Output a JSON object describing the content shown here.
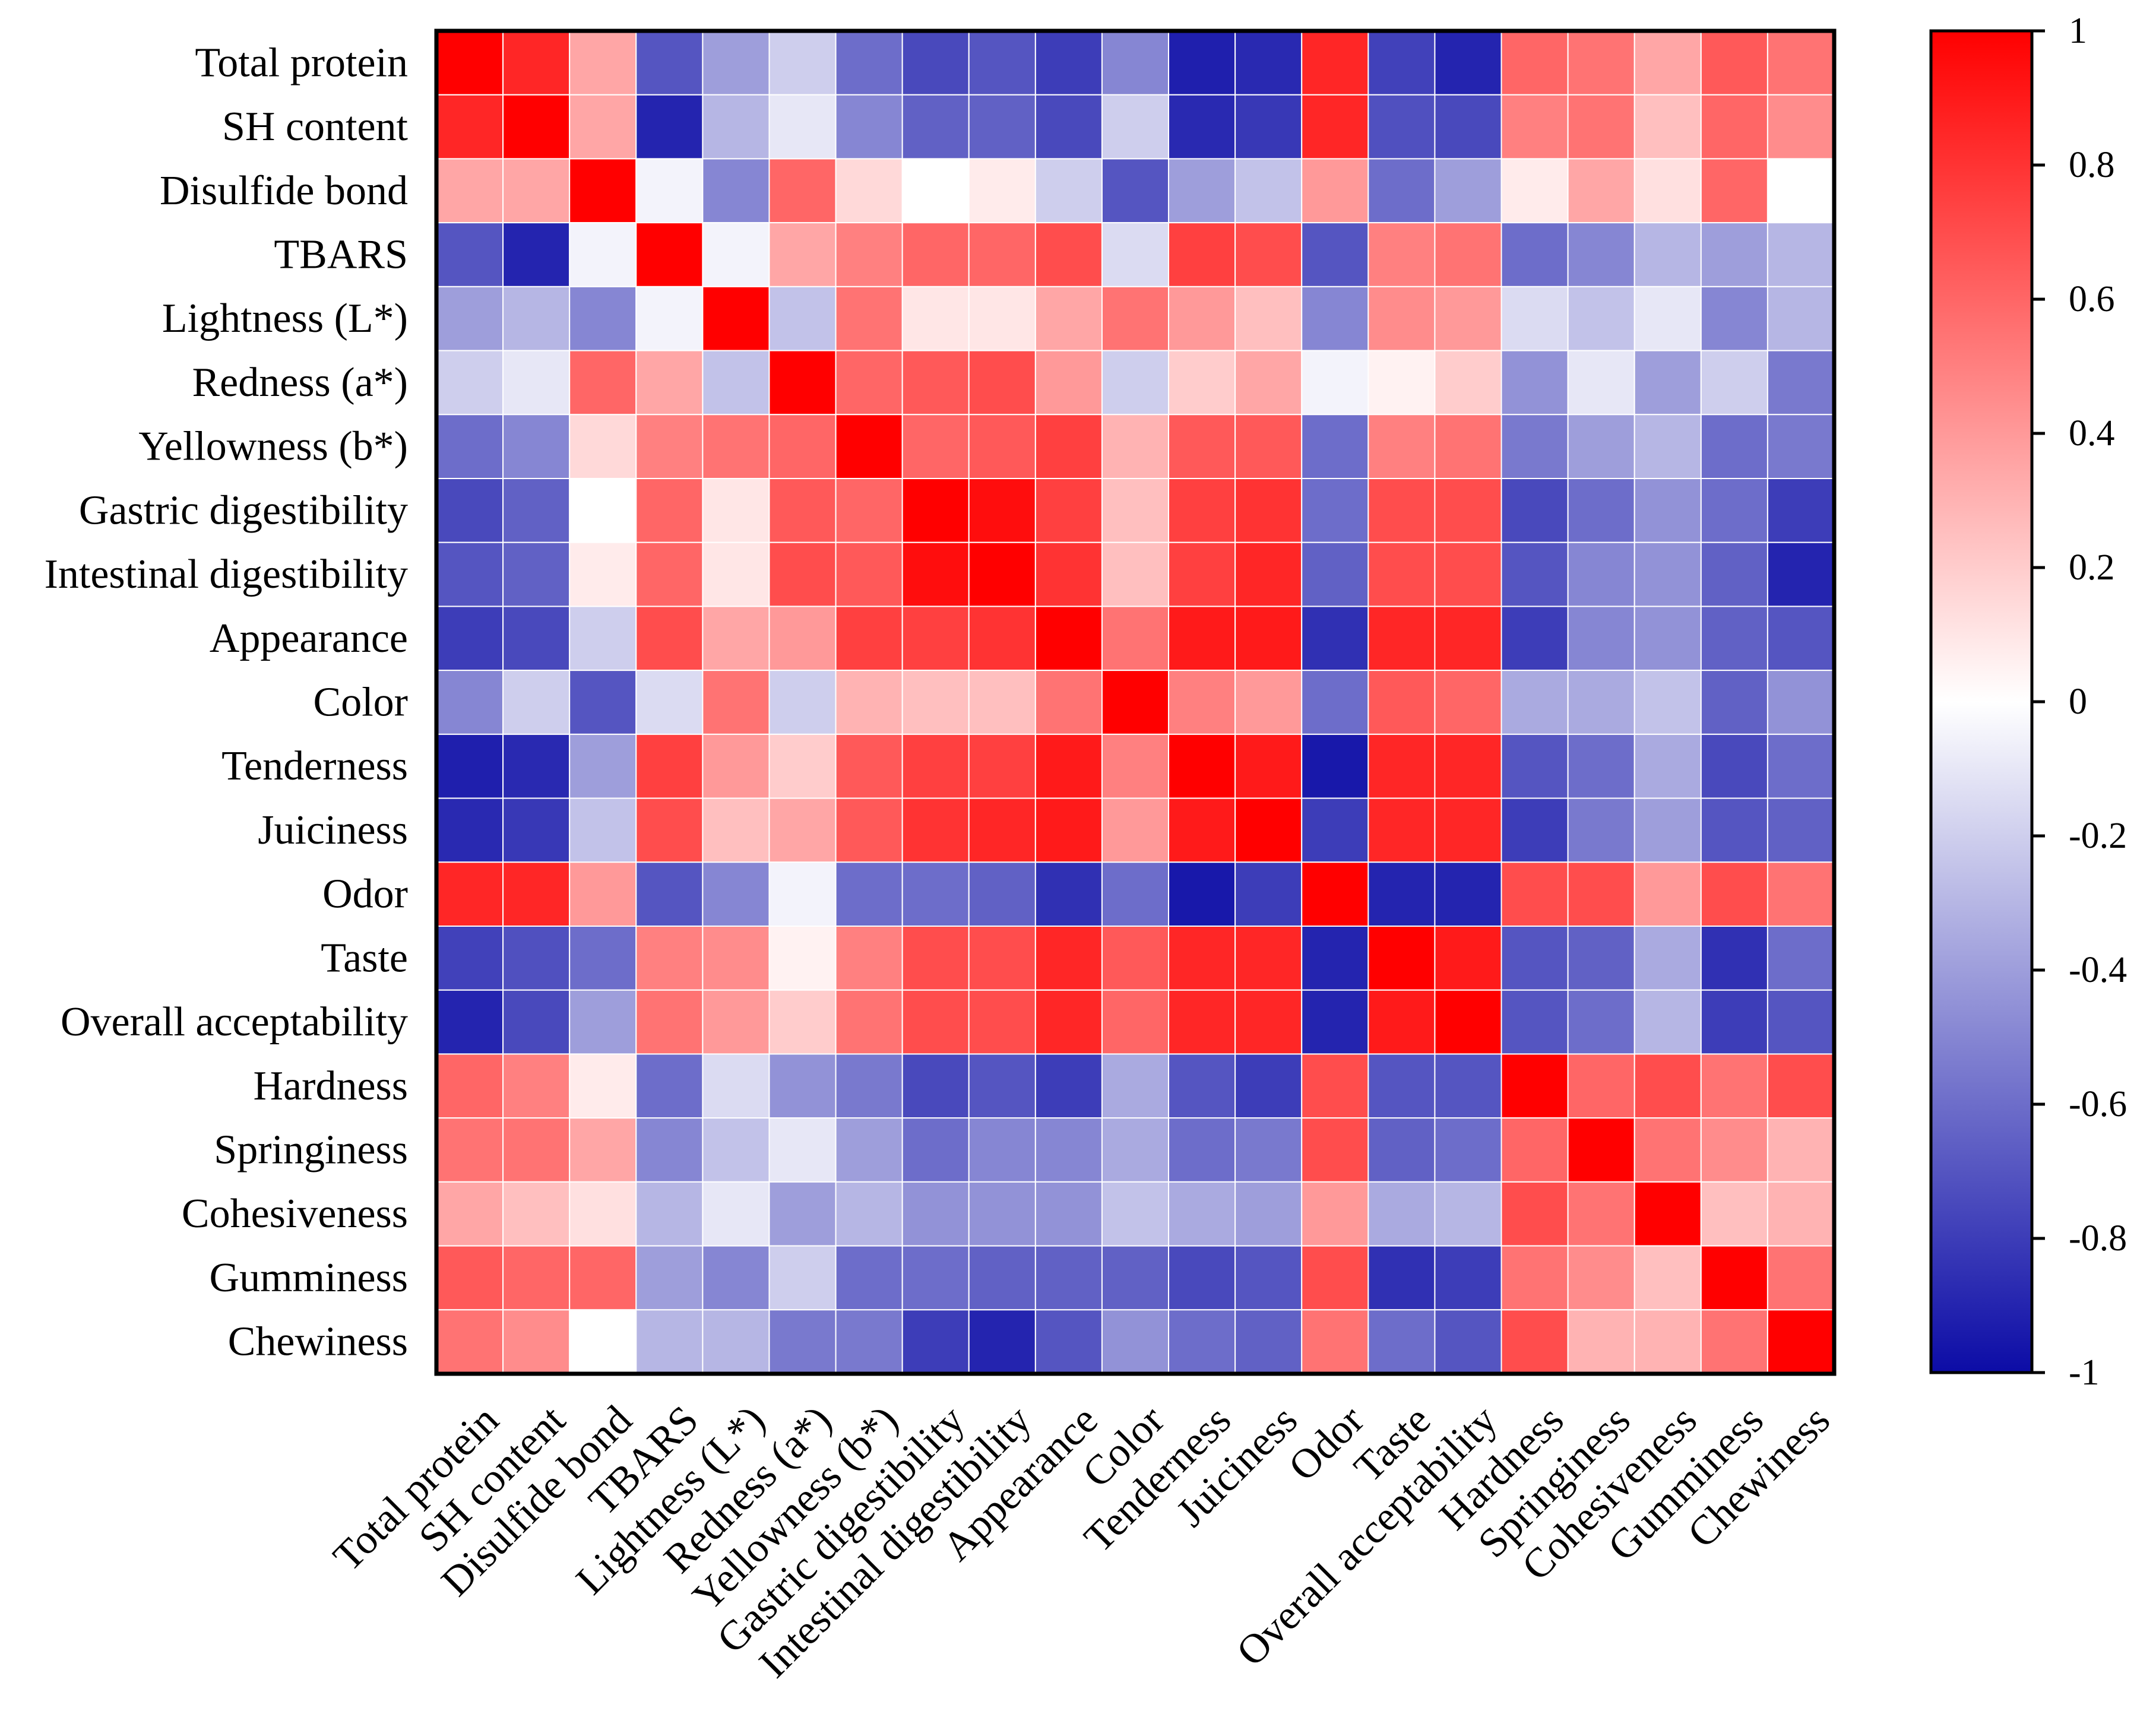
{
  "chart_data": {
    "type": "heatmap",
    "title": "",
    "xlabel": "",
    "ylabel": "",
    "variables": [
      "Total protein",
      "SH content",
      "Disulfide bond",
      "TBARS",
      "Lightness (L*)",
      "Redness (a*)",
      "Yellowness (b*)",
      "Gastric digestibility",
      "Intestinal digestibility",
      "Appearance",
      "Color",
      "Tenderness",
      "Juiciness",
      "Odor",
      "Taste",
      "Overall acceptability",
      "Hardness",
      "Springiness",
      "Cohesiveness",
      "Gumminess",
      "Chewiness"
    ],
    "matrix": [
      [
        1.0,
        0.85,
        0.35,
        -0.7,
        -0.4,
        -0.2,
        -0.6,
        -0.75,
        -0.7,
        -0.8,
        -0.5,
        -0.92,
        -0.88,
        0.85,
        -0.78,
        -0.9,
        0.6,
        0.55,
        0.35,
        0.65,
        0.55
      ],
      [
        0.85,
        1.0,
        0.35,
        -0.9,
        -0.3,
        -0.1,
        -0.5,
        -0.65,
        -0.65,
        -0.75,
        -0.2,
        -0.88,
        -0.82,
        0.85,
        -0.72,
        -0.75,
        0.5,
        0.55,
        0.25,
        0.6,
        0.45
      ],
      [
        0.35,
        0.35,
        1.0,
        -0.05,
        -0.5,
        0.6,
        0.15,
        0.0,
        0.08,
        -0.2,
        -0.7,
        -0.4,
        -0.25,
        0.4,
        -0.6,
        -0.4,
        0.08,
        0.35,
        0.12,
        0.6,
        0.0
      ],
      [
        -0.7,
        -0.9,
        -0.05,
        1.0,
        -0.05,
        0.35,
        0.5,
        0.6,
        0.6,
        0.7,
        -0.15,
        0.75,
        0.7,
        -0.7,
        0.5,
        0.55,
        -0.6,
        -0.5,
        -0.3,
        -0.4,
        -0.3
      ],
      [
        -0.4,
        -0.3,
        -0.5,
        -0.05,
        1.0,
        -0.25,
        0.55,
        0.1,
        0.1,
        0.35,
        0.55,
        0.4,
        0.25,
        -0.5,
        0.45,
        0.4,
        -0.15,
        -0.25,
        -0.1,
        -0.5,
        -0.3
      ],
      [
        -0.2,
        -0.1,
        0.6,
        0.35,
        -0.25,
        1.0,
        0.6,
        0.65,
        0.7,
        0.4,
        -0.2,
        0.2,
        0.35,
        -0.05,
        0.05,
        0.2,
        -0.45,
        -0.1,
        -0.4,
        -0.2,
        -0.55
      ],
      [
        -0.6,
        -0.5,
        0.15,
        0.5,
        0.55,
        0.6,
        1.0,
        0.6,
        0.65,
        0.75,
        0.3,
        0.65,
        0.65,
        -0.6,
        0.5,
        0.55,
        -0.55,
        -0.4,
        -0.3,
        -0.6,
        -0.55
      ],
      [
        -0.75,
        -0.65,
        0.0,
        0.6,
        0.1,
        0.65,
        0.6,
        1.0,
        0.95,
        0.75,
        0.25,
        0.75,
        0.8,
        -0.6,
        0.7,
        0.7,
        -0.75,
        -0.6,
        -0.45,
        -0.6,
        -0.8
      ],
      [
        -0.7,
        -0.65,
        0.08,
        0.6,
        0.1,
        0.7,
        0.65,
        0.95,
        1.0,
        0.8,
        0.25,
        0.75,
        0.85,
        -0.65,
        0.7,
        0.7,
        -0.7,
        -0.5,
        -0.45,
        -0.65,
        -0.9
      ],
      [
        -0.8,
        -0.75,
        -0.2,
        0.7,
        0.35,
        0.4,
        0.75,
        0.75,
        0.8,
        1.0,
        0.55,
        0.9,
        0.9,
        -0.85,
        0.85,
        0.85,
        -0.8,
        -0.5,
        -0.45,
        -0.65,
        -0.7
      ],
      [
        -0.5,
        -0.2,
        -0.7,
        -0.15,
        0.55,
        -0.2,
        0.3,
        0.25,
        0.25,
        0.55,
        1.0,
        0.5,
        0.4,
        -0.6,
        0.65,
        0.6,
        -0.35,
        -0.35,
        -0.25,
        -0.65,
        -0.45
      ],
      [
        -0.92,
        -0.88,
        -0.4,
        0.75,
        0.4,
        0.2,
        0.65,
        0.75,
        0.75,
        0.9,
        0.5,
        1.0,
        0.9,
        -0.95,
        0.85,
        0.85,
        -0.7,
        -0.6,
        -0.35,
        -0.75,
        -0.6
      ],
      [
        -0.88,
        -0.82,
        -0.25,
        0.7,
        0.25,
        0.35,
        0.65,
        0.8,
        0.85,
        0.9,
        0.4,
        0.9,
        1.0,
        -0.8,
        0.85,
        0.85,
        -0.8,
        -0.55,
        -0.4,
        -0.7,
        -0.65
      ],
      [
        0.85,
        0.85,
        0.4,
        -0.7,
        -0.5,
        -0.05,
        -0.6,
        -0.6,
        -0.65,
        -0.85,
        -0.6,
        -0.95,
        -0.8,
        1.0,
        -0.9,
        -0.9,
        0.7,
        0.7,
        0.4,
        0.7,
        0.55
      ],
      [
        -0.78,
        -0.72,
        -0.6,
        0.5,
        0.45,
        0.05,
        0.5,
        0.7,
        0.7,
        0.85,
        0.65,
        0.85,
        0.85,
        -0.9,
        1.0,
        0.9,
        -0.7,
        -0.65,
        -0.35,
        -0.85,
        -0.6
      ],
      [
        -0.9,
        -0.75,
        -0.4,
        0.55,
        0.4,
        0.2,
        0.55,
        0.7,
        0.7,
        0.85,
        0.6,
        0.85,
        0.85,
        -0.9,
        0.9,
        1.0,
        -0.7,
        -0.6,
        -0.3,
        -0.8,
        -0.7
      ],
      [
        0.6,
        0.5,
        0.08,
        -0.6,
        -0.15,
        -0.45,
        -0.55,
        -0.75,
        -0.7,
        -0.8,
        -0.35,
        -0.7,
        -0.8,
        0.7,
        -0.7,
        -0.7,
        1.0,
        0.6,
        0.7,
        0.55,
        0.7
      ],
      [
        0.55,
        0.55,
        0.35,
        -0.5,
        -0.25,
        -0.1,
        -0.4,
        -0.6,
        -0.5,
        -0.5,
        -0.35,
        -0.6,
        -0.55,
        0.7,
        -0.65,
        -0.6,
        0.6,
        1.0,
        0.55,
        0.45,
        0.3
      ],
      [
        0.35,
        0.25,
        0.12,
        -0.3,
        -0.1,
        -0.4,
        -0.3,
        -0.45,
        -0.45,
        -0.45,
        -0.25,
        -0.35,
        -0.4,
        0.4,
        -0.35,
        -0.3,
        0.7,
        0.55,
        1.0,
        0.25,
        0.3
      ],
      [
        0.65,
        0.6,
        0.6,
        -0.4,
        -0.5,
        -0.2,
        -0.6,
        -0.6,
        -0.65,
        -0.65,
        -0.65,
        -0.75,
        -0.7,
        0.7,
        -0.85,
        -0.8,
        0.55,
        0.45,
        0.25,
        1.0,
        0.55
      ],
      [
        0.55,
        0.45,
        0.0,
        -0.3,
        -0.3,
        -0.55,
        -0.55,
        -0.8,
        -0.9,
        -0.7,
        -0.45,
        -0.6,
        -0.65,
        0.55,
        -0.6,
        -0.7,
        0.7,
        0.3,
        0.3,
        0.55,
        1.0
      ]
    ],
    "colorbar": {
      "min": -1,
      "max": 1,
      "ticks": [
        "1",
        "0.8",
        "0.6",
        "0.4",
        "0.2",
        "0",
        "-0.2",
        "-0.4",
        "-0.6",
        "-0.8",
        "-1"
      ],
      "colors": {
        "negative": "#0c0ca6",
        "neutral": "#ffffff",
        "positive": "#ff0000"
      }
    },
    "grid": false,
    "legend": "right"
  }
}
